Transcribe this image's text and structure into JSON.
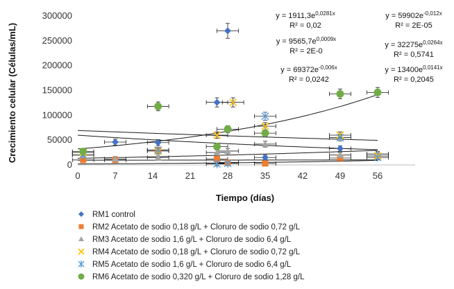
{
  "chart_data": {
    "type": "scatter",
    "title": "",
    "xlabel": "Tiempo (días)",
    "ylabel": "Crecimiento celular (Células/mL)",
    "xlim": [
      0,
      63
    ],
    "ylim": [
      0,
      300000
    ],
    "xticks": [
      0,
      7,
      14,
      21,
      28,
      35,
      42,
      49,
      56
    ],
    "yticks": [
      0,
      50000,
      100000,
      150000,
      200000,
      250000,
      300000
    ],
    "xtick_labels": [
      "0",
      "7",
      "14",
      "21",
      "28",
      "35",
      "42",
      "49",
      "56"
    ],
    "ytick_labels": [
      "0",
      "50000",
      "100000",
      "150000",
      "200000",
      "250000",
      "300000"
    ],
    "error_bars": true,
    "series": [
      {
        "name": "RM1 control",
        "marker": "diamond",
        "color": "#4472C4",
        "x": [
          7,
          15,
          26,
          28,
          35,
          49,
          56
        ],
        "y": [
          46000,
          45000,
          126000,
          270000,
          15000,
          33000,
          22000
        ],
        "trendline": {
          "a": 1911.3,
          "b": 0.0281,
          "equation": "y = 1911,3e",
          "exponent": "0,0281x",
          "r2": "R² = 0,02"
        }
      },
      {
        "name": "RM2 Acetato de sodio 0,18 g/L + Cloruro de sodio 0,72 g/L",
        "marker": "square",
        "color": "#ED7D31",
        "x": [
          1,
          7,
          15,
          26,
          28,
          35,
          49,
          56
        ],
        "y": [
          10000,
          10000,
          30000,
          12000,
          5000,
          3000,
          14000,
          18000
        ],
        "trendline": {
          "a": 9565.7,
          "b": 0.0009,
          "equation": "y = 9565,7e",
          "exponent": "0,0009x",
          "r2": "R² = 2E-0"
        }
      },
      {
        "name": "RM3 Acetato de sodio 1,6 g/L + Cloruro de sodio 6,4 g/L",
        "marker": "triangle",
        "color": "#A5A5A5",
        "x": [
          1,
          7,
          15,
          26,
          28,
          35,
          49,
          56
        ],
        "y": [
          20000,
          12000,
          15000,
          25000,
          28000,
          42000,
          20000,
          22000
        ],
        "trendline": {
          "a": 32275,
          "b": 0.0264,
          "equation": "y = 32275e",
          "exponent": "0,0264x",
          "r2": "R² = 0,5741"
        }
      },
      {
        "name": "RM4 Acetato de sodio 0,18 g/L + Cloruro de sodio 0,72 g/L",
        "marker": "x",
        "color": "#FFC000",
        "x": [
          1,
          15,
          26,
          29,
          35,
          49,
          56
        ],
        "y": [
          25000,
          28000,
          60000,
          126000,
          78000,
          60000,
          18000
        ],
        "trendline": {
          "a": 69372,
          "b": -0.006,
          "equation": "y = 69372e",
          "exponent": "-0,006x",
          "r2": "R² = 0,0242"
        }
      },
      {
        "name": "RM5 Acetato de sodio 1,6 g/L + Cloruro de sodio 6,4 g/L",
        "marker": "star",
        "color": "#5B9BD5",
        "x": [
          1,
          15,
          26,
          28,
          35,
          49,
          56
        ],
        "y": [
          20000,
          30000,
          2000,
          3000,
          98000,
          55000,
          15000
        ],
        "trendline": {
          "a": 59902,
          "b": -0.012,
          "equation": "y = 59902e",
          "exponent": "-0,012x",
          "r2": "R² = 2E-05"
        }
      },
      {
        "name": "RM6 Acetato de sodio 0,320 g/L + Cloruro de sodio 1,28 g/L",
        "marker": "circle",
        "color": "#70AD47",
        "x": [
          1,
          15,
          26,
          28,
          35,
          49,
          56
        ],
        "y": [
          27000,
          118000,
          37000,
          72000,
          64000,
          143000,
          146000
        ],
        "trendline": {
          "a": 13400,
          "b": 0.0141,
          "equation": "y = 13400e",
          "exponent": "0,0141x",
          "r2": "R² = 0,2045"
        }
      }
    ]
  }
}
